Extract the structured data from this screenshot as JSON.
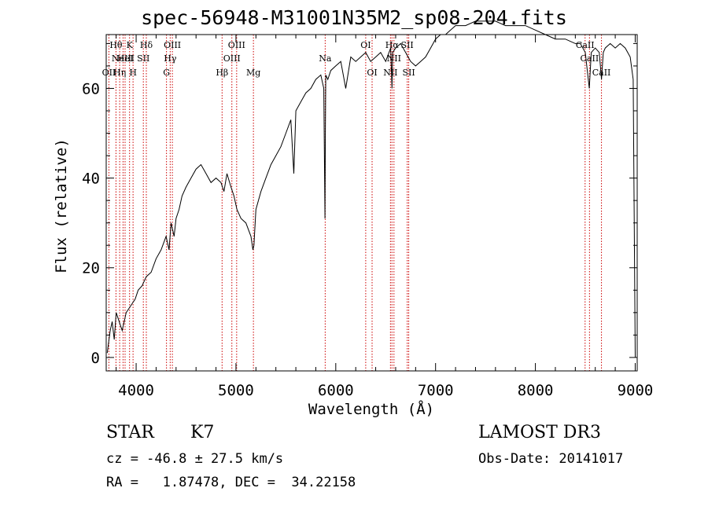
{
  "chart_data": {
    "type": "line",
    "title": "spec-56948-M31001N35M2_sp08-204.fits",
    "xlabel": "Wavelength (Å)",
    "ylabel": "Flux (relative)",
    "xlim": [
      3700,
      9020
    ],
    "ylim": [
      -3,
      72
    ],
    "xticks": [
      4000,
      5000,
      6000,
      7000,
      8000,
      9000
    ],
    "yticks": [
      0,
      20,
      40,
      60
    ],
    "grid": false,
    "line_color": "#000000",
    "marker_color": "#cc0000",
    "series": [
      {
        "x": [
          3710,
          3740,
          3760,
          3780,
          3800,
          3830,
          3860,
          3900,
          3930,
          3960,
          3990,
          4020,
          4060,
          4100,
          4150,
          4200,
          4250,
          4300,
          4330,
          4350,
          4380,
          4400,
          4430,
          4460,
          4500,
          4550,
          4600,
          4650,
          4700,
          4750,
          4800,
          4850,
          4880,
          4910,
          4950,
          4980,
          5010,
          5050,
          5100,
          5150,
          5170,
          5180,
          5200,
          5250,
          5300,
          5350,
          5400,
          5450,
          5500,
          5550,
          5580,
          5600,
          5650,
          5700,
          5750,
          5800,
          5850,
          5880,
          5892,
          5896,
          5900,
          5920,
          5950,
          6000,
          6050,
          6100,
          6150,
          6200,
          6250,
          6300,
          6350,
          6400,
          6450,
          6500,
          6550,
          6563,
          6570,
          6600,
          6650,
          6700,
          6750,
          6800,
          6850,
          6900,
          6950,
          7000,
          7050,
          7100,
          7150,
          7200,
          7300,
          7400,
          7500,
          7600,
          7700,
          7800,
          7900,
          8000,
          8100,
          8200,
          8300,
          8400,
          8450,
          8500,
          8540,
          8560,
          8600,
          8640,
          8662,
          8680,
          8700,
          8750,
          8800,
          8850,
          8900,
          8950,
          8980,
          9000
        ],
        "y": [
          1,
          6,
          8,
          4,
          10,
          8,
          6,
          10,
          11,
          12,
          13,
          15,
          16,
          18,
          19,
          22,
          24,
          27,
          24,
          30,
          27,
          31,
          33,
          36,
          38,
          40,
          42,
          43,
          41,
          39,
          40,
          39,
          37,
          41,
          38,
          36,
          33,
          31,
          30,
          27,
          24,
          25,
          33,
          37,
          40,
          43,
          45,
          47,
          50,
          53,
          41,
          55,
          57,
          59,
          60,
          62,
          63,
          60,
          31,
          50,
          63,
          62,
          64,
          65,
          66,
          60,
          67,
          66,
          67,
          68,
          66,
          67,
          68,
          66,
          69,
          60,
          68,
          69,
          70,
          68,
          66,
          65,
          66,
          67,
          69,
          71,
          72,
          72,
          73,
          74,
          74,
          75,
          75,
          75,
          74,
          74,
          74,
          73,
          72,
          71,
          71,
          70,
          70,
          68,
          60,
          68,
          69,
          68,
          62,
          68,
          69,
          70,
          69,
          70,
          69,
          67,
          62,
          0
        ]
      }
    ],
    "line_markers": [
      {
        "x": 3727,
        "top": "OII",
        "label": "OII",
        "row": 3
      },
      {
        "x": 3798,
        "top": "Hθ",
        "label": "Hθ",
        "row": 1
      },
      {
        "x": 3835,
        "top": "Hη",
        "label": "Hη",
        "row": 3
      },
      {
        "x": 3869,
        "top": "NeIII",
        "label": "NeIII",
        "row": 2
      },
      {
        "x": 3889,
        "top": "HeI",
        "label": "HeI",
        "row": 2
      },
      {
        "x": 3934,
        "top": "K",
        "label": "K",
        "row": 1
      },
      {
        "x": 3969,
        "top": "H",
        "label": "H",
        "row": 3
      },
      {
        "x": 4072,
        "top": "SII",
        "label": "SII",
        "row": 2
      },
      {
        "x": 4102,
        "top": "Hδ",
        "label": "Hδ",
        "row": 1
      },
      {
        "x": 4304,
        "top": "G",
        "label": "G",
        "row": 3
      },
      {
        "x": 4341,
        "top": "Hγ",
        "label": "Hγ",
        "row": 2
      },
      {
        "x": 4363,
        "top": "OIII",
        "label": "OIII",
        "row": 1
      },
      {
        "x": 4861,
        "top": "Hβ",
        "label": "Hβ",
        "row": 3
      },
      {
        "x": 4959,
        "top": "OIII",
        "label": "OIII",
        "row": 2
      },
      {
        "x": 5007,
        "top": "OIII",
        "label": "OIII",
        "row": 1
      },
      {
        "x": 5175,
        "top": "Mg",
        "label": "Mg",
        "row": 3
      },
      {
        "x": 5894,
        "top": "Na",
        "label": "Na",
        "row": 2
      },
      {
        "x": 6300,
        "top": "OI",
        "label": "OI",
        "row": 1
      },
      {
        "x": 6364,
        "top": "OI",
        "label": "OI",
        "row": 3
      },
      {
        "x": 6548,
        "top": "NII",
        "label": "NII",
        "row": 3
      },
      {
        "x": 6563,
        "top": "Hα",
        "label": "Hα",
        "row": 1
      },
      {
        "x": 6583,
        "top": "NII",
        "label": "NII",
        "row": 2
      },
      {
        "x": 6716,
        "top": "SII",
        "label": "SII",
        "row": 1
      },
      {
        "x": 6731,
        "top": "SII",
        "label": "SII",
        "row": 3
      },
      {
        "x": 8498,
        "top": "CaII",
        "label": "CaII",
        "row": 1
      },
      {
        "x": 8542,
        "top": "CaII",
        "label": "CaII",
        "row": 2
      },
      {
        "x": 8662,
        "top": "CaII",
        "label": "CaII",
        "row": 3
      }
    ]
  },
  "info": {
    "class": "STAR",
    "subclass": "K7",
    "survey": "LAMOST DR3",
    "cz": "cz = -46.8 ± 27.5 km/s",
    "obs_date": "Obs-Date: 20141017",
    "radec": "RA =   1.87478, DEC =  34.22158"
  }
}
